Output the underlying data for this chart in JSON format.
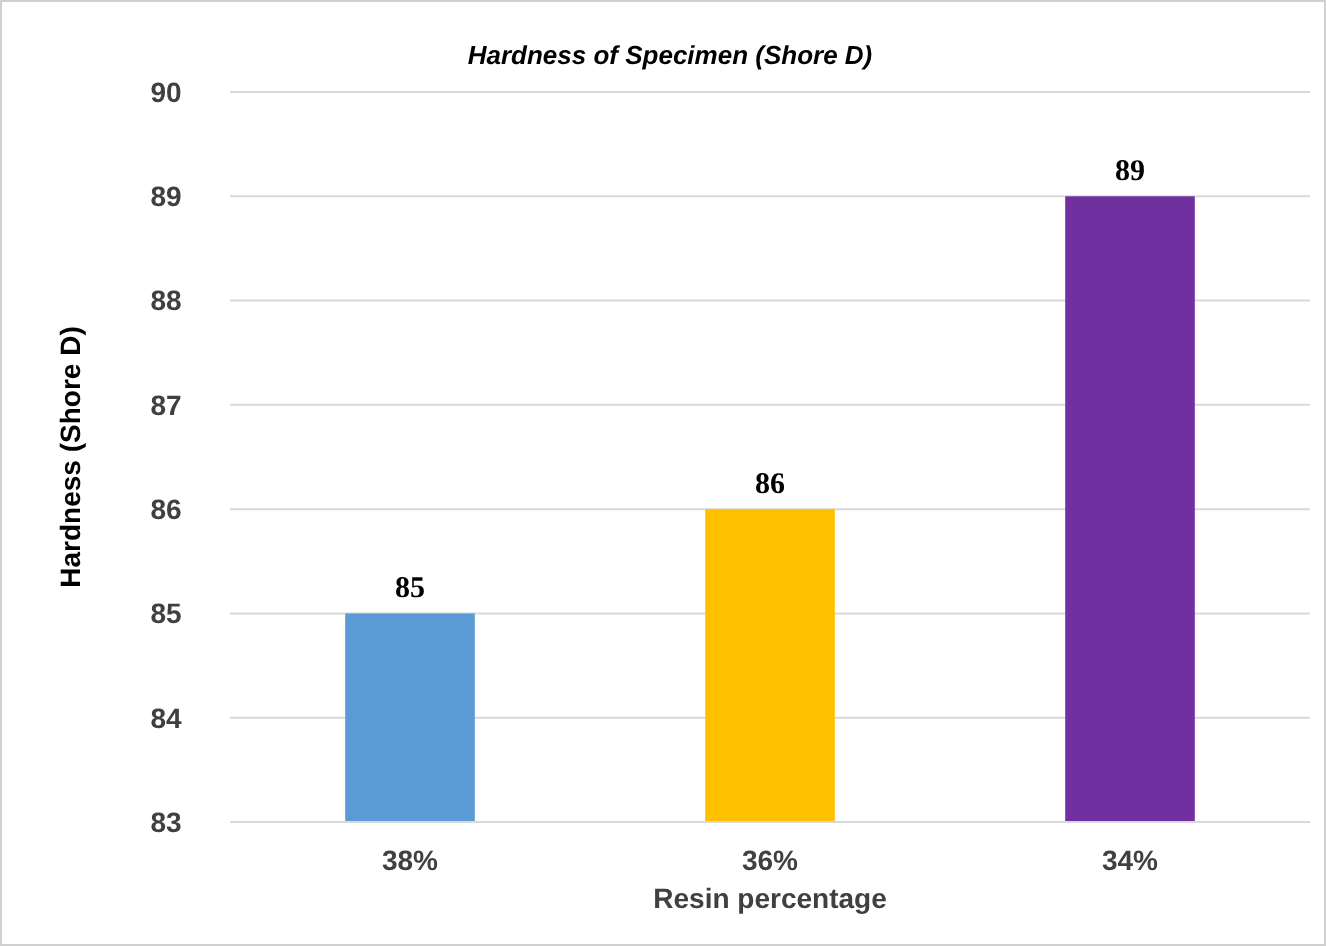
{
  "chart_data": {
    "type": "bar",
    "title": "Hardness of Specimen (Shore D)",
    "xlabel": "Resin percentage",
    "ylabel": "Hardness (Shore D)",
    "categories": [
      "38%",
      "36%",
      "34%"
    ],
    "values": [
      85,
      86,
      89
    ],
    "colors": [
      "#5b9bd5",
      "#ffc000",
      "#7030a0"
    ],
    "ylim": [
      83,
      90
    ],
    "yticks": [
      83,
      84,
      85,
      86,
      87,
      88,
      89,
      90
    ],
    "grid": "y",
    "data_labels": true
  }
}
